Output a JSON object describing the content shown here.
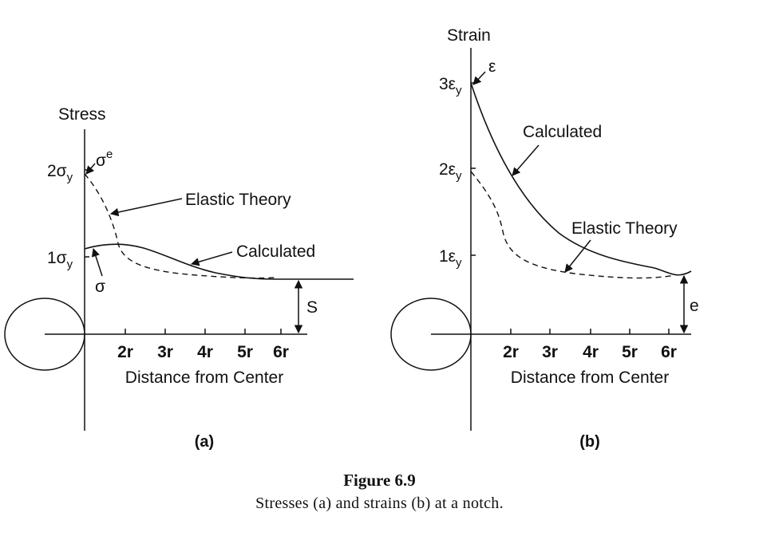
{
  "figure": {
    "title": "Figure 6.9",
    "caption": "Stresses (a) and strains (b) at a notch."
  },
  "panel_a": {
    "label": "(a)",
    "y_axis_title": "Stress",
    "y_ticks": [
      {
        "main": "2σ",
        "sub": "y"
      },
      {
        "main": "1σ",
        "sub": "y"
      }
    ],
    "x_ticks": [
      "2r",
      "3r",
      "4r",
      "5r",
      "6r"
    ],
    "x_axis_title": "Distance from Center",
    "annotations": {
      "sigma_e_main": "σ",
      "sigma_e_sup": "e",
      "sigma": "σ",
      "elastic_theory": "Elastic Theory",
      "calculated": "Calculated",
      "S": "S"
    }
  },
  "panel_b": {
    "label": "(b)",
    "y_axis_title": "Strain",
    "y_ticks": [
      {
        "main": "3ε",
        "sub": "y"
      },
      {
        "main": "2ε",
        "sub": "y"
      },
      {
        "main": "1ε",
        "sub": "y"
      }
    ],
    "x_ticks": [
      "2r",
      "3r",
      "4r",
      "5r",
      "6r"
    ],
    "x_axis_title": "Distance from Center",
    "annotations": {
      "epsilon": "ε",
      "calculated": "Calculated",
      "elastic_theory": "Elastic Theory",
      "e": "e"
    }
  }
}
